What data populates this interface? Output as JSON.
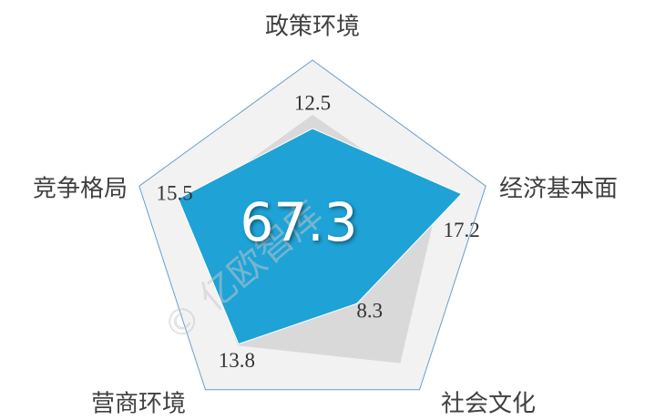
{
  "chart_data": {
    "type": "radar",
    "categories": [
      "政策环境",
      "经济基本面",
      "社会文化",
      "营商环境",
      "竞争格局"
    ],
    "rlim": [
      0,
      20
    ],
    "series": [
      {
        "color": "#d9d9d9",
        "values": [
          14,
          14.5,
          16.4,
          14,
          14
        ]
      },
      {
        "color": "#1fa2d6",
        "values": [
          12.5,
          17.2,
          8.3,
          13.8,
          15.5
        ]
      }
    ],
    "total": 67.3,
    "watermark": "© 亿欧智库"
  }
}
